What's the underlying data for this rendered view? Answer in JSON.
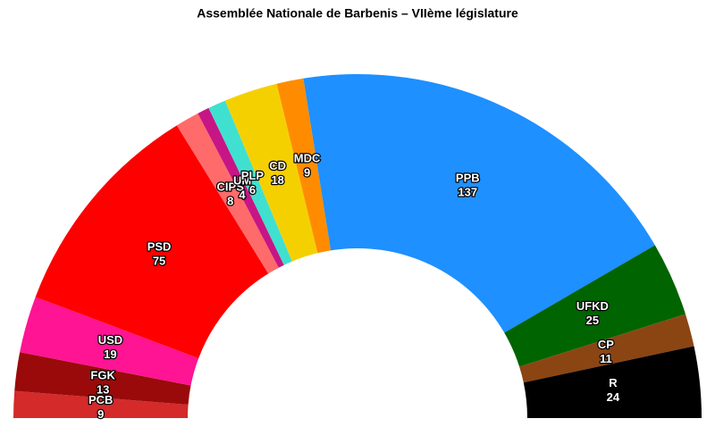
{
  "chart_data": {
    "type": "parliament",
    "title": "Assemblée Nationale de Barbenis – VIIème législature",
    "categories": [
      "PCB",
      "FGK",
      "USD",
      "PSD",
      "CIPS",
      "UM",
      "PLP",
      "CD",
      "MDC",
      "PPB",
      "UFKD",
      "CP",
      "R"
    ],
    "values": [
      9,
      13,
      19,
      75,
      8,
      4,
      6,
      18,
      9,
      137,
      25,
      11,
      24
    ],
    "colors": [
      "#d42a2a",
      "#9b0a0a",
      "#ff1493",
      "#ff0000",
      "#ff6b6b",
      "#c71585",
      "#40e0d0",
      "#f5d000",
      "#ff8c00",
      "#1e90ff",
      "#006400",
      "#8b4513",
      "#000000"
    ]
  }
}
